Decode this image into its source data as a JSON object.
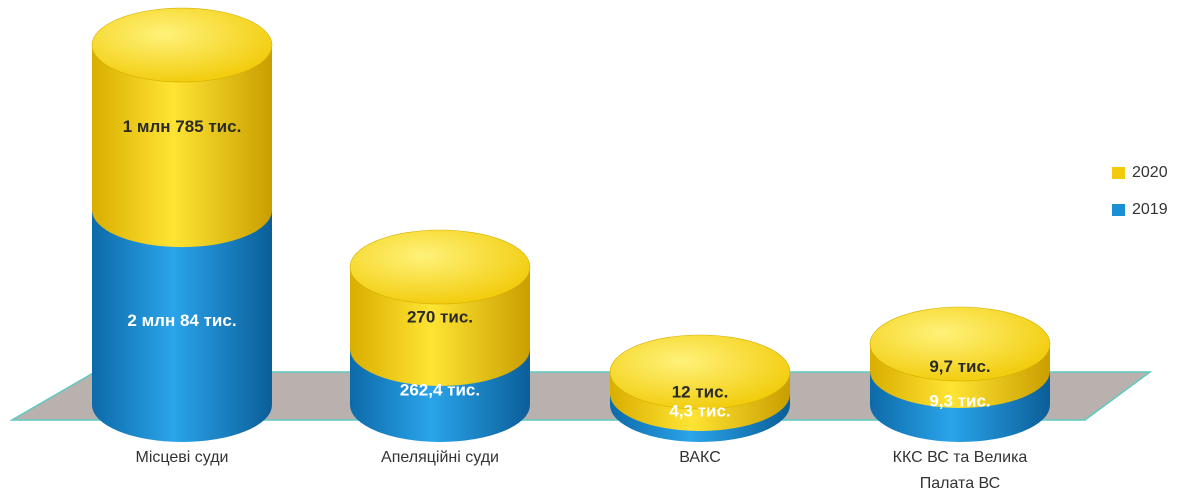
{
  "chart_data": {
    "type": "bar",
    "style": "3d-stacked-cylinder",
    "categories": [
      [
        "Місцеві суди"
      ],
      [
        "Апеляційні суди"
      ],
      [
        "ВАКС"
      ],
      [
        "ККС ВС та Велика",
        "Палата ВС"
      ]
    ],
    "series": [
      {
        "name": "2019",
        "color": "#1a8fd6",
        "values": [
          2084000,
          262400,
          4300,
          9300
        ],
        "labels": [
          "2 млн 84 тис.",
          "262,4 тис.",
          "4,3 тис.",
          "9,3 тис."
        ]
      },
      {
        "name": "2020",
        "color": "#f2cc0c",
        "values": [
          1785000,
          270000,
          12000,
          9700
        ],
        "labels": [
          "1 млн 785 тис.",
          "270 тис.",
          "12 тис.",
          "9,7 тис."
        ]
      }
    ],
    "legend_position": "right",
    "grid": false,
    "floor_color": "#b8b1ae"
  }
}
